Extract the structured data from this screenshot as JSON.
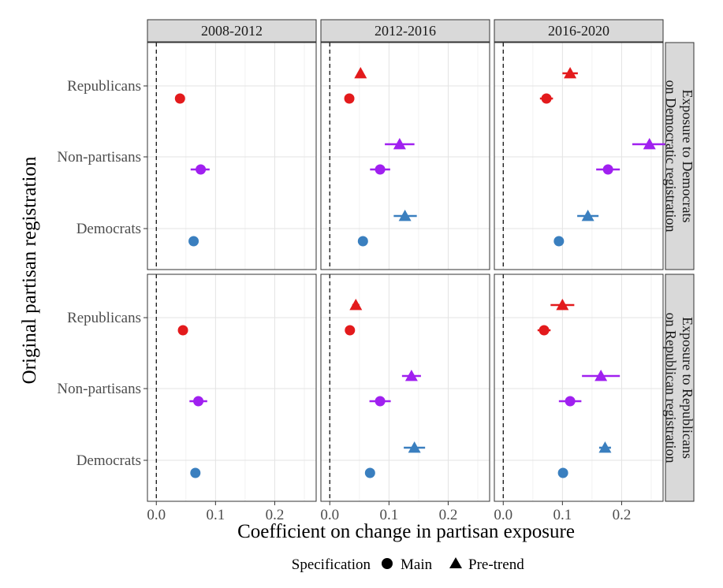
{
  "chart_data": {
    "type": "scatter",
    "subtype": "faceted point-range (coefficient plot)",
    "xlabel": "Coefficient on change in partisan exposure",
    "ylabel": "Original partisan registration",
    "xlim": [
      -0.015,
      0.27
    ],
    "x_ticks": [
      0.0,
      0.1,
      0.2
    ],
    "x_tick_labels": [
      "0.0",
      "0.1",
      "0.2"
    ],
    "reference_line": 0,
    "grid": true,
    "categories": [
      "Republicans",
      "Non-partisans",
      "Democrats"
    ],
    "facet_columns": [
      "2008-2012",
      "2012-2016",
      "2016-2020"
    ],
    "facet_rows": [
      "Exposure to Democrats on Democratic registration",
      "Exposure to Republicans on Republican registration"
    ],
    "facet_row_lines": [
      [
        "Exposure to Democrats",
        "on Democratic registration"
      ],
      [
        "Exposure to Republicans",
        "on Republican registration"
      ]
    ],
    "legend": {
      "title": "Specification",
      "position": "bottom",
      "entries": [
        {
          "label": "Main",
          "shape": "circle"
        },
        {
          "label": "Pre-trend",
          "shape": "triangle"
        }
      ]
    },
    "colors": {
      "Republicans": "#e31a1c",
      "Non-partisans": "#a020f0",
      "Democrats": "#3a7fbf"
    },
    "points": [
      {
        "row": 0,
        "col": 0,
        "group": "Republicans",
        "spec": "Main",
        "estimate": 0.04,
        "low": 0.037,
        "high": 0.043
      },
      {
        "row": 0,
        "col": 0,
        "group": "Non-partisans",
        "spec": "Main",
        "estimate": 0.075,
        "low": 0.058,
        "high": 0.09
      },
      {
        "row": 0,
        "col": 0,
        "group": "Democrats",
        "spec": "Main",
        "estimate": 0.063,
        "low": 0.059,
        "high": 0.067
      },
      {
        "row": 0,
        "col": 1,
        "group": "Republicans",
        "spec": "Pre-trend",
        "estimate": 0.052,
        "low": 0.048,
        "high": 0.056
      },
      {
        "row": 0,
        "col": 1,
        "group": "Republicans",
        "spec": "Main",
        "estimate": 0.033,
        "low": 0.03,
        "high": 0.036
      },
      {
        "row": 0,
        "col": 1,
        "group": "Non-partisans",
        "spec": "Pre-trend",
        "estimate": 0.118,
        "low": 0.093,
        "high": 0.143
      },
      {
        "row": 0,
        "col": 1,
        "group": "Non-partisans",
        "spec": "Main",
        "estimate": 0.085,
        "low": 0.068,
        "high": 0.102
      },
      {
        "row": 0,
        "col": 1,
        "group": "Democrats",
        "spec": "Pre-trend",
        "estimate": 0.127,
        "low": 0.108,
        "high": 0.147
      },
      {
        "row": 0,
        "col": 1,
        "group": "Democrats",
        "spec": "Main",
        "estimate": 0.056,
        "low": 0.053,
        "high": 0.059
      },
      {
        "row": 0,
        "col": 2,
        "group": "Republicans",
        "spec": "Pre-trend",
        "estimate": 0.113,
        "low": 0.1,
        "high": 0.126
      },
      {
        "row": 0,
        "col": 2,
        "group": "Republicans",
        "spec": "Main",
        "estimate": 0.073,
        "low": 0.062,
        "high": 0.084
      },
      {
        "row": 0,
        "col": 2,
        "group": "Non-partisans",
        "spec": "Pre-trend",
        "estimate": 0.247,
        "low": 0.218,
        "high": 0.276
      },
      {
        "row": 0,
        "col": 2,
        "group": "Non-partisans",
        "spec": "Main",
        "estimate": 0.177,
        "low": 0.157,
        "high": 0.197
      },
      {
        "row": 0,
        "col": 2,
        "group": "Democrats",
        "spec": "Pre-trend",
        "estimate": 0.143,
        "low": 0.125,
        "high": 0.161
      },
      {
        "row": 0,
        "col": 2,
        "group": "Democrats",
        "spec": "Main",
        "estimate": 0.094,
        "low": 0.09,
        "high": 0.098
      },
      {
        "row": 1,
        "col": 0,
        "group": "Republicans",
        "spec": "Main",
        "estimate": 0.045,
        "low": 0.041,
        "high": 0.049
      },
      {
        "row": 1,
        "col": 0,
        "group": "Non-partisans",
        "spec": "Main",
        "estimate": 0.071,
        "low": 0.056,
        "high": 0.086
      },
      {
        "row": 1,
        "col": 0,
        "group": "Democrats",
        "spec": "Main",
        "estimate": 0.066,
        "low": 0.062,
        "high": 0.07
      },
      {
        "row": 1,
        "col": 1,
        "group": "Republicans",
        "spec": "Pre-trend",
        "estimate": 0.044,
        "low": 0.038,
        "high": 0.05
      },
      {
        "row": 1,
        "col": 1,
        "group": "Republicans",
        "spec": "Main",
        "estimate": 0.034,
        "low": 0.031,
        "high": 0.037
      },
      {
        "row": 1,
        "col": 1,
        "group": "Non-partisans",
        "spec": "Pre-trend",
        "estimate": 0.138,
        "low": 0.122,
        "high": 0.154
      },
      {
        "row": 1,
        "col": 1,
        "group": "Non-partisans",
        "spec": "Main",
        "estimate": 0.085,
        "low": 0.067,
        "high": 0.103
      },
      {
        "row": 1,
        "col": 1,
        "group": "Democrats",
        "spec": "Pre-trend",
        "estimate": 0.143,
        "low": 0.125,
        "high": 0.161
      },
      {
        "row": 1,
        "col": 1,
        "group": "Democrats",
        "spec": "Main",
        "estimate": 0.068,
        "low": 0.064,
        "high": 0.072
      },
      {
        "row": 1,
        "col": 2,
        "group": "Republicans",
        "spec": "Pre-trend",
        "estimate": 0.1,
        "low": 0.08,
        "high": 0.12
      },
      {
        "row": 1,
        "col": 2,
        "group": "Republicans",
        "spec": "Main",
        "estimate": 0.069,
        "low": 0.058,
        "high": 0.08
      },
      {
        "row": 1,
        "col": 2,
        "group": "Non-partisans",
        "spec": "Pre-trend",
        "estimate": 0.165,
        "low": 0.133,
        "high": 0.197
      },
      {
        "row": 1,
        "col": 2,
        "group": "Non-partisans",
        "spec": "Main",
        "estimate": 0.113,
        "low": 0.094,
        "high": 0.132
      },
      {
        "row": 1,
        "col": 2,
        "group": "Democrats",
        "spec": "Pre-trend",
        "estimate": 0.172,
        "low": 0.162,
        "high": 0.182
      },
      {
        "row": 1,
        "col": 2,
        "group": "Democrats",
        "spec": "Main",
        "estimate": 0.101,
        "low": 0.097,
        "high": 0.105
      }
    ]
  }
}
